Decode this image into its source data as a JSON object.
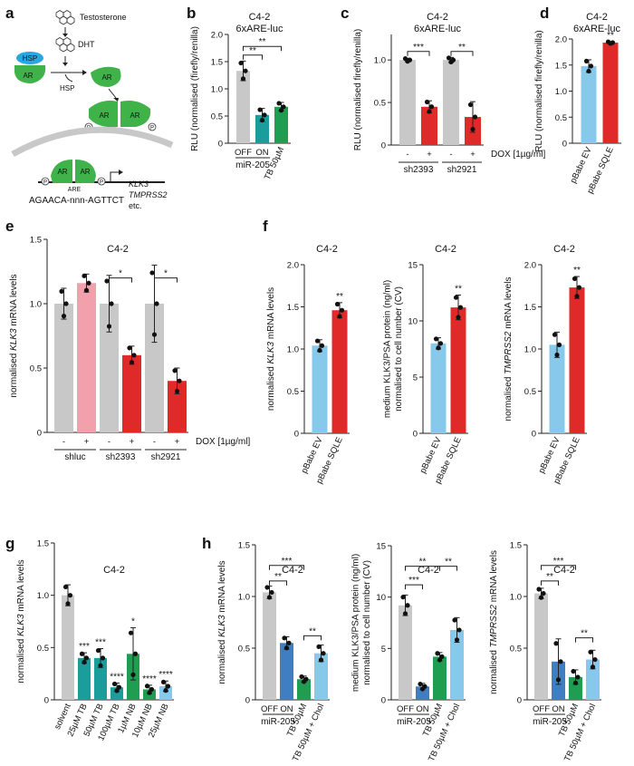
{
  "figure": {
    "panel_letters": [
      "a",
      "b",
      "c",
      "d",
      "e",
      "f",
      "g",
      "h"
    ]
  },
  "schematic": {
    "testosterone": "Testosterone",
    "dht": "DHT",
    "hsp": "HSP",
    "ar": "AR",
    "hsp_free": "HSP",
    "p": "P",
    "are": "ARE",
    "sequence": "AGAACA-nnn-AGTTCT",
    "gene1": "KLK3",
    "gene2": "TMPRSS2",
    "etc": "etc."
  },
  "colors": {
    "grey": "#c8c8c8",
    "teal": "#1b9d9b",
    "green": "#1f9e52",
    "red": "#e02a2a",
    "lightblue": "#86c9ea",
    "pink": "#f3a0ad",
    "blue": "#3f7fc1",
    "schem_green": "#3fb24a",
    "schem_blue": "#2aa7dc"
  },
  "chart_data": [
    {
      "id": "b",
      "type": "bar",
      "title": "C4-2",
      "subtitle": "6xARE-luc",
      "ylabel": "RLU (normalised (firefly/renilla)",
      "ylim": [
        0,
        2.0
      ],
      "yticks": [
        0,
        0.5,
        1.0,
        1.5,
        2.0
      ],
      "yticklabels": [
        "0",
        "0.5",
        "1.0",
        "1.5",
        "2.0"
      ],
      "categories": [
        "OFF",
        "ON",
        "TB 50µM"
      ],
      "values": [
        1.33,
        0.52,
        0.67
      ],
      "errors": [
        0.18,
        0.12,
        0.08
      ],
      "colors": [
        "grey",
        "teal",
        "green"
      ],
      "group_labels": [
        {
          "text": "miR-205",
          "span": [
            0,
            1
          ]
        }
      ],
      "significance": [
        {
          "from": 0,
          "to": 1,
          "label": "**",
          "level": 1.62
        },
        {
          "from": 0,
          "to": 2,
          "label": "**",
          "level": 1.78
        }
      ]
    },
    {
      "id": "c",
      "type": "bar",
      "title": "C4-2",
      "subtitle": "6xARE-luc",
      "ylabel": "RLU (normalised firefly/renilla)",
      "ylim": [
        0,
        1.3
      ],
      "yticks": [
        0,
        0.5,
        1.0
      ],
      "yticklabels": [
        "0",
        "0.5",
        "1.0"
      ],
      "categories": [
        "-",
        "+",
        "-",
        "+"
      ],
      "values": [
        1.0,
        0.45,
        1.0,
        0.33
      ],
      "errors": [
        0.02,
        0.07,
        0.03,
        0.18
      ],
      "colors": [
        "grey",
        "red",
        "grey",
        "red"
      ],
      "condition_label": "DOX [1µg/ml]",
      "group_labels": [
        {
          "text": "sh2393",
          "span": [
            0,
            1
          ]
        },
        {
          "text": "sh2921",
          "span": [
            2,
            3
          ]
        }
      ],
      "significance": [
        {
          "from": 0,
          "to": 1,
          "label": "***",
          "level": 1.1
        },
        {
          "from": 2,
          "to": 3,
          "label": "**",
          "level": 1.1
        }
      ]
    },
    {
      "id": "d",
      "type": "bar",
      "title": "C4-2",
      "subtitle": "6xARE-luc",
      "ylabel": "RLU (normalised firefly/renilla)",
      "ylim": [
        0,
        2.0
      ],
      "yticks": [
        0,
        0.5,
        1.0,
        1.5,
        2.0
      ],
      "yticklabels": [
        "0",
        "0.5",
        "1.0",
        "1.5",
        "2.0"
      ],
      "categories": [
        "pBabe EV",
        "pBabe SQLE"
      ],
      "values": [
        1.48,
        1.93
      ],
      "errors": [
        0.12,
        0.02
      ],
      "colors": [
        "lightblue",
        "red"
      ],
      "star_labels": [
        {
          "index": 1,
          "label": "**"
        }
      ]
    },
    {
      "id": "e",
      "type": "bar",
      "title": "C4-2",
      "ylabel": "normalised KLK3 mRNA levels",
      "ylim": [
        0,
        1.5
      ],
      "yticks": [
        0,
        0.5,
        1.0,
        1.5
      ],
      "yticklabels": [
        "0",
        "0.5",
        "1.0",
        "1.5"
      ],
      "categories": [
        "-",
        "+",
        "-",
        "+",
        "-",
        "+"
      ],
      "values": [
        1.0,
        1.16,
        1.0,
        0.6,
        1.0,
        0.4
      ],
      "errors": [
        0.12,
        0.07,
        0.22,
        0.07,
        0.3,
        0.1
      ],
      "colors": [
        "grey",
        "pink",
        "grey",
        "red",
        "grey",
        "red"
      ],
      "condition_label": "DOX [1µg/ml]",
      "group_labels": [
        {
          "text": "shluc",
          "span": [
            0,
            1
          ]
        },
        {
          "text": "sh2393",
          "span": [
            2,
            3
          ]
        },
        {
          "text": "sh2921",
          "span": [
            4,
            5
          ]
        }
      ],
      "significance": [
        {
          "from": 2,
          "to": 3,
          "label": "*",
          "level": 1.2
        },
        {
          "from": 4,
          "to": 5,
          "label": "*",
          "level": 1.2
        }
      ]
    },
    {
      "id": "f1",
      "type": "bar",
      "title": "C4-2",
      "ylabel": "normalised KLK3 mRNA levels",
      "ylim": [
        0,
        2.0
      ],
      "yticks": [
        0,
        0.5,
        1.0,
        1.5,
        2.0
      ],
      "yticklabels": [
        "0",
        "0.5",
        "1.0",
        "1.5",
        "2.0"
      ],
      "categories": [
        "pBabe EV",
        "pBabe SQLE"
      ],
      "values": [
        1.04,
        1.46
      ],
      "errors": [
        0.07,
        0.09
      ],
      "colors": [
        "lightblue",
        "red"
      ],
      "star_labels": [
        {
          "index": 1,
          "label": "**"
        }
      ]
    },
    {
      "id": "f2",
      "type": "bar",
      "title": "C4-2",
      "ylabel": "medium KLK3/PSA protein (ng/ml) normalised to cell number (CV)",
      "ylim": [
        0,
        15
      ],
      "yticks": [
        0,
        5,
        10,
        15
      ],
      "yticklabels": [
        "0",
        "5",
        "10",
        "15"
      ],
      "categories": [
        "pBabe EV",
        "pBabe SQLE"
      ],
      "values": [
        8.0,
        11.2
      ],
      "errors": [
        0.5,
        1.1
      ],
      "colors": [
        "lightblue",
        "red"
      ],
      "star_labels": [
        {
          "index": 1,
          "label": "**"
        }
      ]
    },
    {
      "id": "f3",
      "type": "bar",
      "title": "C4-2",
      "ylabel": "normalised TMPRSS2 mRNA levels",
      "ylim": [
        0,
        2.0
      ],
      "yticks": [
        0,
        0.5,
        1.0,
        1.5,
        2.0
      ],
      "yticklabels": [
        "0",
        "0.5",
        "1.0",
        "1.5",
        "2.0"
      ],
      "categories": [
        "pBabe EV",
        "pBabe SQLE"
      ],
      "values": [
        1.05,
        1.73
      ],
      "errors": [
        0.15,
        0.13
      ],
      "colors": [
        "lightblue",
        "red"
      ],
      "star_labels": [
        {
          "index": 1,
          "label": "**"
        }
      ]
    },
    {
      "id": "g",
      "type": "bar",
      "title": "C4-2",
      "ylabel": "normalised KLK3 mRNA levels",
      "ylim": [
        0,
        1.5
      ],
      "yticks": [
        0,
        0.5,
        1.0,
        1.5
      ],
      "yticklabels": [
        "0",
        "0.5",
        "1.0",
        "1.5"
      ],
      "categories": [
        "solvent",
        "25µM TB",
        "50µM TB",
        "100µM TB",
        "1µM NB",
        "10µM NB",
        "25µM NB"
      ],
      "values": [
        1.0,
        0.4,
        0.4,
        0.12,
        0.44,
        0.1,
        0.13
      ],
      "errors": [
        0.1,
        0.05,
        0.09,
        0.04,
        0.25,
        0.04,
        0.05
      ],
      "colors": [
        "grey",
        "teal",
        "teal",
        "teal",
        "green",
        "green",
        "lightblue"
      ],
      "star_labels": [
        {
          "index": 1,
          "label": "***"
        },
        {
          "index": 2,
          "label": "***"
        },
        {
          "index": 3,
          "label": "****"
        },
        {
          "index": 4,
          "label": "*"
        },
        {
          "index": 5,
          "label": "****"
        },
        {
          "index": 6,
          "label": "****"
        }
      ]
    },
    {
      "id": "h1",
      "type": "bar",
      "title": "C4-2",
      "ylabel": "normalised KLK3 mRNA levels",
      "ylim": [
        0,
        1.5
      ],
      "yticks": [
        0,
        0.5,
        1.0,
        1.5
      ],
      "yticklabels": [
        "0",
        "0.5",
        "1.0",
        "1.5"
      ],
      "categories": [
        "OFF",
        "ON",
        "TB 50µM",
        "TB 50µM + Chol"
      ],
      "values": [
        1.04,
        0.55,
        0.2,
        0.45
      ],
      "errors": [
        0.06,
        0.06,
        0.03,
        0.08
      ],
      "colors": [
        "grey",
        "blue",
        "green",
        "lightblue"
      ],
      "group_labels": [
        {
          "text": "miR-205",
          "span": [
            0,
            1
          ]
        }
      ],
      "significance": [
        {
          "from": 0,
          "to": 1,
          "label": "**",
          "level": 1.15
        },
        {
          "from": 0,
          "to": 2,
          "label": "***",
          "level": 1.3
        },
        {
          "from": 2,
          "to": 3,
          "label": "**",
          "level": 0.62
        }
      ]
    },
    {
      "id": "h2",
      "type": "bar",
      "title": "C4-2",
      "ylabel": "medium KLK3/PSA protein (ng/ml) normalised to cell number (CV)",
      "ylim": [
        0,
        15
      ],
      "yticks": [
        0,
        5,
        10,
        15
      ],
      "yticklabels": [
        "0",
        "5",
        "10",
        "15"
      ],
      "categories": [
        "OFF",
        "ON",
        "TB 50µM",
        "TB 50µM + Chol"
      ],
      "values": [
        9.2,
        1.3,
        4.2,
        6.8
      ],
      "errors": [
        1.0,
        0.3,
        0.4,
        1.2
      ],
      "colors": [
        "grey",
        "blue",
        "green",
        "lightblue"
      ],
      "group_labels": [
        {
          "text": "miR-205",
          "span": [
            0,
            1
          ]
        }
      ],
      "significance": [
        {
          "from": 0,
          "to": 2,
          "label": "**",
          "level": 13.0
        },
        {
          "from": 0,
          "to": 1,
          "label": "***",
          "level": 11.2
        },
        {
          "from": 2,
          "to": 3,
          "label": "**",
          "level": 13.0
        }
      ]
    },
    {
      "id": "h3",
      "type": "bar",
      "title": "C4-2",
      "ylabel": "normalised TMPRSS2 mRNA levels",
      "ylim": [
        0,
        1.5
      ],
      "yticks": [
        0,
        0.5,
        1.0,
        1.5
      ],
      "yticklabels": [
        "0",
        "0.5",
        "1.0",
        "1.5"
      ],
      "categories": [
        "OFF",
        "ON",
        "TB 50µM",
        "TB 50µM + Chol"
      ],
      "values": [
        1.03,
        0.37,
        0.22,
        0.39
      ],
      "errors": [
        0.05,
        0.22,
        0.07,
        0.09
      ],
      "colors": [
        "grey",
        "blue",
        "green",
        "lightblue"
      ],
      "group_labels": [
        {
          "text": "miR-205",
          "span": [
            0,
            1
          ]
        }
      ],
      "significance": [
        {
          "from": 0,
          "to": 1,
          "label": "**",
          "level": 1.15
        },
        {
          "from": 0,
          "to": 2,
          "label": "***",
          "level": 1.3
        },
        {
          "from": 2,
          "to": 3,
          "label": "**",
          "level": 0.6
        }
      ]
    }
  ]
}
